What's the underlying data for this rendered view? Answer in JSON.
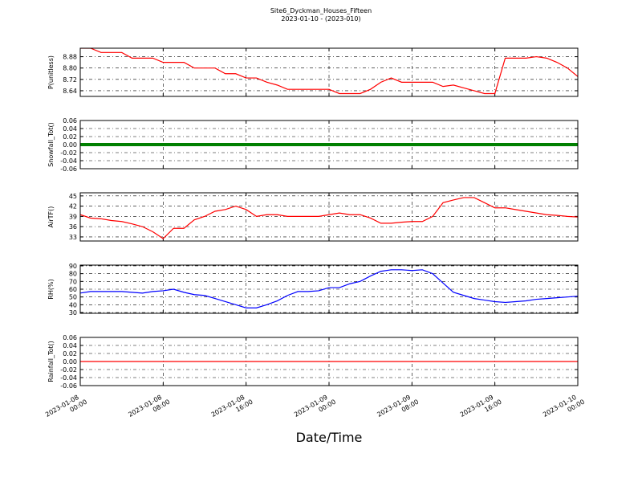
{
  "title": "Site6_Dyckman_Houses_Fifteen",
  "subtitle": "2023-01-10 - (2023-010)",
  "x_label": "Date/Time",
  "xlim": [
    "2023-01-08 00:00",
    "2023-01-10 00:00"
  ],
  "xticks": [
    "2023-01-08 00:00",
    "2023-01-08 08:00",
    "2023-01-08 16:00",
    "2023-01-09 00:00",
    "2023-01-09 08:00",
    "2023-01-09 16:00",
    "2023-01-10 00:00"
  ],
  "x": [
    "2023-01-08 00:00",
    "2023-01-08 01:00",
    "2023-01-08 02:00",
    "2023-01-08 03:00",
    "2023-01-08 04:00",
    "2023-01-08 05:00",
    "2023-01-08 06:00",
    "2023-01-08 07:00",
    "2023-01-08 08:00",
    "2023-01-08 09:00",
    "2023-01-08 10:00",
    "2023-01-08 11:00",
    "2023-01-08 12:00",
    "2023-01-08 13:00",
    "2023-01-08 14:00",
    "2023-01-08 15:00",
    "2023-01-08 16:00",
    "2023-01-08 17:00",
    "2023-01-08 18:00",
    "2023-01-08 19:00",
    "2023-01-08 20:00",
    "2023-01-08 21:00",
    "2023-01-08 22:00",
    "2023-01-08 23:00",
    "2023-01-09 00:00",
    "2023-01-09 01:00",
    "2023-01-09 02:00",
    "2023-01-09 03:00",
    "2023-01-09 04:00",
    "2023-01-09 05:00",
    "2023-01-09 06:00",
    "2023-01-09 07:00",
    "2023-01-09 08:00",
    "2023-01-09 09:00",
    "2023-01-09 10:00",
    "2023-01-09 11:00",
    "2023-01-09 12:00",
    "2023-01-09 13:00",
    "2023-01-09 14:00",
    "2023-01-09 15:00",
    "2023-01-09 16:00",
    "2023-01-09 17:00",
    "2023-01-09 18:00",
    "2023-01-09 19:00",
    "2023-01-09 20:00",
    "2023-01-09 21:00",
    "2023-01-09 22:00",
    "2023-01-09 23:00",
    "2023-01-10 00:00"
  ],
  "chart_data": [
    {
      "type": "line",
      "y_label": "P(unitless)",
      "ylim": [
        8.6,
        8.94
      ],
      "yticks": [
        8.64,
        8.72,
        {
          "value": 8.8,
          "label": "8.80"
        },
        8.88
      ],
      "grid": true,
      "color": "#ff0000",
      "values": [
        8.94,
        8.94,
        8.91,
        8.91,
        8.91,
        8.87,
        8.87,
        8.87,
        8.84,
        8.84,
        8.84,
        8.8,
        8.8,
        8.8,
        8.76,
        8.76,
        8.73,
        8.73,
        8.7,
        8.68,
        8.65,
        8.65,
        8.65,
        8.65,
        8.65,
        8.62,
        8.62,
        8.62,
        8.65,
        8.7,
        8.73,
        8.7,
        8.7,
        8.7,
        8.7,
        8.67,
        8.68,
        8.66,
        8.64,
        8.62,
        8.62,
        8.87,
        8.87,
        8.87,
        8.88,
        8.87,
        8.84,
        8.8,
        8.74
      ]
    },
    {
      "type": "line",
      "y_label": "Snowfall_Tot()",
      "ylim": [
        -0.06,
        0.06
      ],
      "yticks": [
        -0.06,
        -0.04,
        -0.02,
        {
          "value": 0,
          "label": "0.00"
        },
        0.02,
        0.04,
        0.06
      ],
      "grid": true,
      "color": "#008000",
      "line_width": 4,
      "values": [
        0,
        0,
        0,
        0,
        0,
        0,
        0,
        0,
        0,
        0,
        0,
        0,
        0,
        0,
        0,
        0,
        0,
        0,
        0,
        0,
        0,
        0,
        0,
        0,
        0,
        0,
        0,
        0,
        0,
        0,
        0,
        0,
        0,
        0,
        0,
        0,
        0,
        0,
        0,
        0,
        0,
        0,
        0,
        0,
        0,
        0,
        0,
        0,
        0
      ]
    },
    {
      "type": "line",
      "y_label": "AirTF()",
      "ylim": [
        31.8,
        45.9
      ],
      "yticks": [
        33,
        36,
        39,
        42,
        45
      ],
      "grid": true,
      "color": "#ff0000",
      "values": [
        39.5,
        38.5,
        38.3,
        37.8,
        37.5,
        36.8,
        36,
        34.5,
        32.5,
        35.5,
        35.5,
        38,
        39,
        40.5,
        41,
        42,
        41,
        39,
        39.5,
        39.5,
        39,
        39,
        39,
        39,
        39.5,
        40,
        39.5,
        39.5,
        38.5,
        37,
        37,
        37.3,
        37.5,
        37.5,
        39,
        43,
        43.8,
        44.5,
        44.5,
        43,
        41.5,
        41.5,
        41,
        40.5,
        40,
        39.5,
        39.3,
        39,
        38.8
      ]
    },
    {
      "type": "line",
      "y_label": "RH(%)",
      "ylim": [
        29,
        91
      ],
      "yticks": [
        30,
        40,
        50,
        60,
        70,
        80,
        90
      ],
      "grid": true,
      "color": "#0000ff",
      "values": [
        55,
        57,
        57,
        57,
        57,
        56,
        55,
        57,
        58,
        60,
        56,
        53,
        52,
        48,
        44,
        40,
        36,
        36,
        40,
        45,
        52,
        57,
        57,
        58,
        62,
        62,
        67,
        70,
        77,
        83,
        85,
        85,
        84,
        85,
        80,
        68,
        56,
        52,
        48,
        46,
        44,
        43,
        44,
        45,
        47,
        48,
        49,
        50,
        51
      ]
    },
    {
      "type": "line",
      "y_label": "Rainfall_Tot()",
      "ylim": [
        -0.06,
        0.06
      ],
      "yticks": [
        -0.06,
        -0.04,
        -0.02,
        {
          "value": 0,
          "label": "0.00"
        },
        0.02,
        0.04,
        0.06
      ],
      "grid": true,
      "color": "#ff0000",
      "values": [
        0,
        0,
        0,
        0,
        0,
        0,
        0,
        0,
        0,
        0,
        0,
        0,
        0,
        0,
        0,
        0,
        0,
        0,
        0,
        0,
        0,
        0,
        0,
        0,
        0,
        0,
        0,
        0,
        0,
        0,
        0,
        0,
        0,
        0,
        0,
        0,
        0,
        0,
        0,
        0,
        0,
        0,
        0,
        0,
        0,
        0,
        0,
        0,
        0
      ]
    }
  ]
}
